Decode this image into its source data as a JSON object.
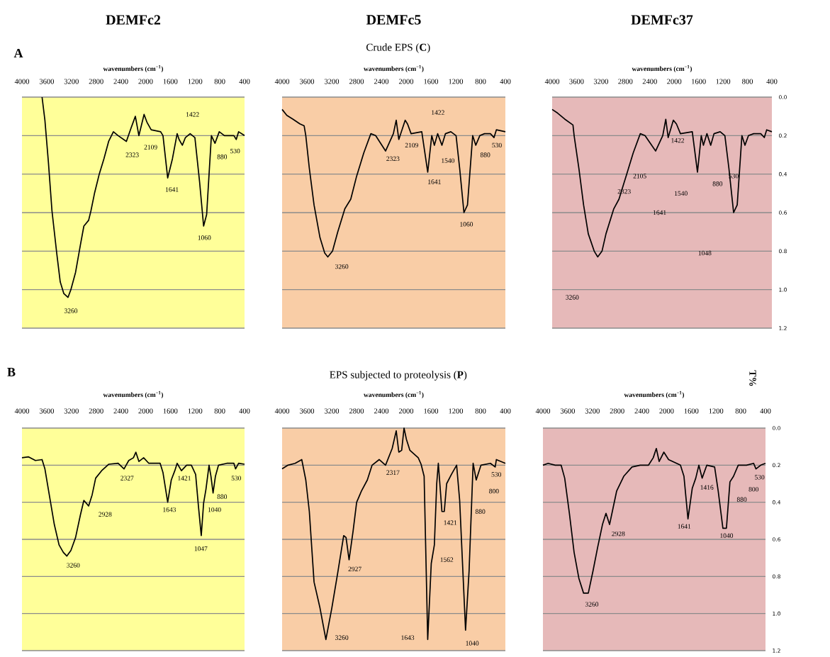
{
  "chart_data": [
    {
      "type": "line",
      "title": "DEMFc2",
      "xlabel": "wavenumbers (cm$^{−1}$)",
      "xlim": [
        4000,
        400
      ],
      "xticks": [
        4000,
        3600,
        3200,
        2800,
        2400,
        2000,
        1600,
        1200,
        800,
        400
      ],
      "ylim": [
        1.2,
        0
      ],
      "yticks": [
        0,
        0.2,
        0.4,
        0.6,
        0.8,
        1.0,
        1.2
      ],
      "tick_labels": "x",
      "grid": "y",
      "series": [
        {
          "color": "#000000",
          "x": [
            3675,
            3629,
            3572,
            3515,
            3438,
            3381,
            3324,
            3255,
            3209,
            3133,
            3056,
            2999,
            2922,
            2884,
            2827,
            2750,
            2674,
            2598,
            2521,
            2445,
            2311,
            2235,
            2166,
            2109,
            2025,
            1979,
            1910,
            1757,
            1719,
            1643,
            1566,
            1490,
            1459,
            1406,
            1356,
            1280,
            1203,
            1127,
            1062,
            1013,
            936,
            878,
            809,
            725,
            572,
            534,
            496,
            400
          ],
          "values": [
            0.0,
            0.12,
            0.34,
            0.59,
            0.81,
            0.96,
            1.02,
            1.04,
            1.0,
            0.91,
            0.77,
            0.67,
            0.64,
            0.59,
            0.5,
            0.4,
            0.32,
            0.23,
            0.18,
            0.2,
            0.23,
            0.16,
            0.1,
            0.2,
            0.09,
            0.13,
            0.17,
            0.18,
            0.2,
            0.42,
            0.32,
            0.19,
            0.22,
            0.25,
            0.21,
            0.19,
            0.21,
            0.44,
            0.67,
            0.61,
            0.2,
            0.24,
            0.18,
            0.2,
            0.2,
            0.22,
            0.18,
            0.2
          ]
        }
      ],
      "annotations": [
        "**A**",
        "3260",
        "2323",
        "2109",
        "1641",
        "1422",
        "1060",
        "880",
        "530"
      ]
    },
    {
      "type": "line",
      "title": "DEMFc5",
      "subtitle": "Crude EPS (**C**)",
      "xlabel": "wavenumbers (cm$^{−1}$)",
      "xlim": [
        4000,
        400
      ],
      "xticks": [
        4000,
        3600,
        3200,
        2800,
        2400,
        2000,
        1600,
        1200,
        800,
        400
      ],
      "ylim": [
        1.2,
        0
      ],
      "yticks": [
        0,
        0.2,
        0.4,
        0.6,
        0.8,
        1.0,
        1.2
      ],
      "tick_labels": "x",
      "grid": "y",
      "series": [
        {
          "color": "#000000",
          "x": [
            4000,
            3924,
            3828,
            3714,
            3645,
            3618,
            3561,
            3485,
            3389,
            3313,
            3263,
            3187,
            3103,
            2988,
            2893,
            2798,
            2683,
            2569,
            2492,
            2332,
            2206,
            2160,
            2118,
            2015,
            1977,
            1920,
            1748,
            1652,
            1587,
            1545,
            1492,
            1423,
            1366,
            1279,
            1195,
            1137,
            1068,
            1011,
            927,
            877,
            812,
            736,
            641,
            583,
            545,
            400
          ],
          "values": [
            0.064,
            0.095,
            0.114,
            0.139,
            0.149,
            0.2,
            0.37,
            0.56,
            0.73,
            0.81,
            0.83,
            0.8,
            0.7,
            0.58,
            0.53,
            0.41,
            0.29,
            0.19,
            0.2,
            0.28,
            0.19,
            0.12,
            0.22,
            0.12,
            0.14,
            0.19,
            0.18,
            0.39,
            0.2,
            0.25,
            0.19,
            0.25,
            0.19,
            0.18,
            0.2,
            0.37,
            0.6,
            0.56,
            0.2,
            0.25,
            0.2,
            0.19,
            0.19,
            0.21,
            0.17,
            0.18
          ]
        }
      ],
      "annotations": [
        "3260",
        "2323",
        "2109",
        "1641",
        "1422",
        "1540",
        "1060",
        "880",
        "530"
      ]
    },
    {
      "type": "line",
      "title": "DEMFc37",
      "xlabel": "wavenumbers (cm$^{−1}$)",
      "ylabel": "T%",
      "xlim": [
        4000,
        400
      ],
      "xticks": [
        4000,
        3600,
        3200,
        2800,
        2400,
        2000,
        1600,
        1200,
        800,
        400
      ],
      "ylim": [
        1.2,
        0
      ],
      "yticks": [
        {
          "value": 0,
          "label": "0.0"
        },
        {
          "value": 0.2,
          "label": "0.2"
        },
        {
          "value": 0.4,
          "label": "0.4"
        },
        {
          "value": 0.6,
          "label": "0.6"
        },
        {
          "value": 0.8,
          "label": "0.8"
        },
        {
          "value": 1.0,
          "label": "1.0"
        },
        {
          "value": 1.2,
          "label": "1.2"
        }
      ],
      "grid": "y",
      "series": [
        {
          "color": "#000000",
          "x": [
            4000,
            3911,
            3795,
            3659,
            3640,
            3562,
            3485,
            3408,
            3311,
            3253,
            3183,
            3118,
            2990,
            2905,
            2788,
            2672,
            2556,
            2479,
            2305,
            2188,
            2138,
            2099,
            2014,
            1963,
            1898,
            1704,
            1619,
            1557,
            1522,
            1464,
            1402,
            1348,
            1247,
            1170,
            1104,
            1027,
            968,
            891,
            841,
            783,
            698,
            582,
            524,
            485,
            400
          ],
          "values": [
            0.064,
            0.083,
            0.114,
            0.145,
            0.2,
            0.37,
            0.56,
            0.71,
            0.8,
            0.83,
            0.8,
            0.71,
            0.58,
            0.53,
            0.41,
            0.29,
            0.19,
            0.2,
            0.28,
            0.2,
            0.115,
            0.21,
            0.12,
            0.14,
            0.19,
            0.18,
            0.39,
            0.2,
            0.25,
            0.19,
            0.25,
            0.19,
            0.18,
            0.2,
            0.37,
            0.6,
            0.56,
            0.2,
            0.25,
            0.2,
            0.19,
            0.19,
            0.21,
            0.17,
            0.18
          ]
        }
      ],
      "annotations": [
        "1422",
        "2105",
        "2323",
        "1540",
        "1641",
        "880",
        "530",
        "1048",
        "3260"
      ]
    },
    {
      "type": "line",
      "xlabel": "wavenumbers (cm$^{−1}$)",
      "xlim": [
        4000,
        400
      ],
      "xticks": [
        4000,
        3600,
        3200,
        2800,
        2400,
        2000,
        1600,
        1200,
        800,
        400
      ],
      "ylim": [
        1.2,
        0
      ],
      "yticks": [
        0,
        0.2,
        0.4,
        0.6,
        0.8,
        1.0,
        1.2
      ],
      "tick_labels": "x",
      "grid": "y",
      "series": [
        {
          "color": "#000000",
          "x": [
            4000,
            3897,
            3782,
            3675,
            3629,
            3553,
            3477,
            3400,
            3331,
            3274,
            3209,
            3133,
            3056,
            2999,
            2922,
            2865,
            2808,
            2712,
            2598,
            2445,
            2349,
            2273,
            2197,
            2158,
            2109,
            2032,
            1948,
            1765,
            1719,
            1643,
            1585,
            1528,
            1490,
            1421,
            1337,
            1260,
            1191,
            1146,
            1100,
            1062,
            1024,
            974,
            943,
            909,
            871,
            821,
            687,
            572,
            545,
            496,
            400
          ],
          "values": [
            0.16,
            0.155,
            0.175,
            0.17,
            0.22,
            0.37,
            0.52,
            0.63,
            0.67,
            0.69,
            0.66,
            0.59,
            0.47,
            0.39,
            0.42,
            0.36,
            0.27,
            0.23,
            0.195,
            0.19,
            0.22,
            0.175,
            0.16,
            0.13,
            0.18,
            0.16,
            0.19,
            0.19,
            0.24,
            0.4,
            0.28,
            0.23,
            0.19,
            0.23,
            0.2,
            0.2,
            0.25,
            0.42,
            0.58,
            0.405,
            0.33,
            0.2,
            0.26,
            0.35,
            0.26,
            0.2,
            0.19,
            0.19,
            0.22,
            0.19,
            0.195
          ]
        }
      ],
      "annotations": [
        "**B**",
        "3260",
        "2928",
        "2327",
        "1643",
        "1421",
        "880",
        "1040",
        "1047",
        "530"
      ]
    },
    {
      "type": "line",
      "subtitle": "EPS subjected to proteolysis (**P**)",
      "xlabel": "wavenumbers (cm$^{−1}$)",
      "xlim": [
        4000,
        400
      ],
      "xticks": [
        4000,
        3600,
        3200,
        2800,
        2400,
        2000,
        1600,
        1200,
        800,
        400
      ],
      "ylim": [
        1.2,
        0
      ],
      "yticks": [
        0,
        0.2,
        0.4,
        0.6,
        0.8,
        1.0,
        1.2
      ],
      "tick_labels": "x",
      "grid": "y",
      "series": [
        {
          "color": "#000000",
          "x": [
            4000,
            3905,
            3790,
            3683,
            3618,
            3561,
            3485,
            3389,
            3294,
            3198,
            3103,
            3007,
            2969,
            2920,
            2855,
            2798,
            2721,
            2626,
            2549,
            2435,
            2332,
            2225,
            2160,
            2118,
            2072,
            2034,
            1996,
            1939,
            1805,
            1759,
            1710,
            1652,
            1595,
            1545,
            1507,
            1481,
            1423,
            1385,
            1347,
            1270,
            1186,
            1137,
            1042,
            985,
            920,
            870,
            832,
            793,
            641,
            564,
            545,
            400
          ],
          "values": [
            0.22,
            0.2,
            0.19,
            0.17,
            0.28,
            0.45,
            0.83,
            0.97,
            1.14,
            0.97,
            0.78,
            0.58,
            0.59,
            0.71,
            0.555,
            0.4,
            0.34,
            0.28,
            0.2,
            0.17,
            0.2,
            0.11,
            0.015,
            0.13,
            0.12,
            0.0,
            0.06,
            0.12,
            0.16,
            0.195,
            0.26,
            1.14,
            0.73,
            0.63,
            0.3,
            0.19,
            0.45,
            0.45,
            0.3,
            0.25,
            0.2,
            0.39,
            1.09,
            0.77,
            0.19,
            0.28,
            0.24,
            0.2,
            0.19,
            0.21,
            0.17,
            0.19
          ]
        }
      ],
      "annotations": [
        "3260",
        "2927",
        "2317",
        "1643",
        "1562",
        "1421",
        "880",
        "1040",
        "800",
        "530"
      ]
    },
    {
      "type": "line",
      "xlabel": "wavenumbers (cm$^{−1}$)",
      "xlim": [
        4000,
        400
      ],
      "xticks": [
        4000,
        3600,
        3200,
        2800,
        2400,
        2000,
        1600,
        1200,
        800,
        400
      ],
      "ylim": [
        1.2,
        0
      ],
      "yticks": [
        {
          "value": 0,
          "label": "0.0"
        },
        {
          "value": 0.2,
          "label": "0.2"
        },
        {
          "value": 0.4,
          "label": "0.4"
        },
        {
          "value": 0.6,
          "label": "0.6"
        },
        {
          "value": 0.8,
          "label": "0.8"
        },
        {
          "value": 1.0,
          "label": "1.0"
        },
        {
          "value": 1.2,
          "label": "1.2"
        }
      ],
      "grid": "y",
      "series": [
        {
          "color": "#000000",
          "x": [
            4000,
            3916,
            3801,
            3706,
            3648,
            3572,
            3496,
            3419,
            3343,
            3266,
            3190,
            3113,
            3037,
            2980,
            2922,
            2865,
            2808,
            2693,
            2559,
            2426,
            2292,
            2216,
            2166,
            2120,
            2044,
            1967,
            1776,
            1719,
            1654,
            1585,
            1528,
            1478,
            1425,
            1349,
            1223,
            1165,
            1089,
            1032,
            975,
            917,
            841,
            707,
            592,
            554,
            477,
            400
          ],
          "values": [
            0.2,
            0.19,
            0.2,
            0.2,
            0.27,
            0.46,
            0.67,
            0.81,
            0.89,
            0.89,
            0.77,
            0.64,
            0.52,
            0.46,
            0.52,
            0.43,
            0.34,
            0.26,
            0.21,
            0.2,
            0.2,
            0.16,
            0.11,
            0.18,
            0.13,
            0.17,
            0.2,
            0.26,
            0.49,
            0.325,
            0.27,
            0.2,
            0.27,
            0.2,
            0.21,
            0.34,
            0.54,
            0.54,
            0.29,
            0.26,
            0.2,
            0.2,
            0.19,
            0.22,
            0.2,
            0.19
          ]
        }
      ],
      "annotations": [
        "3260",
        "2928",
        "1641",
        "1416",
        "1040",
        "880",
        "800",
        "530"
      ]
    }
  ]
}
